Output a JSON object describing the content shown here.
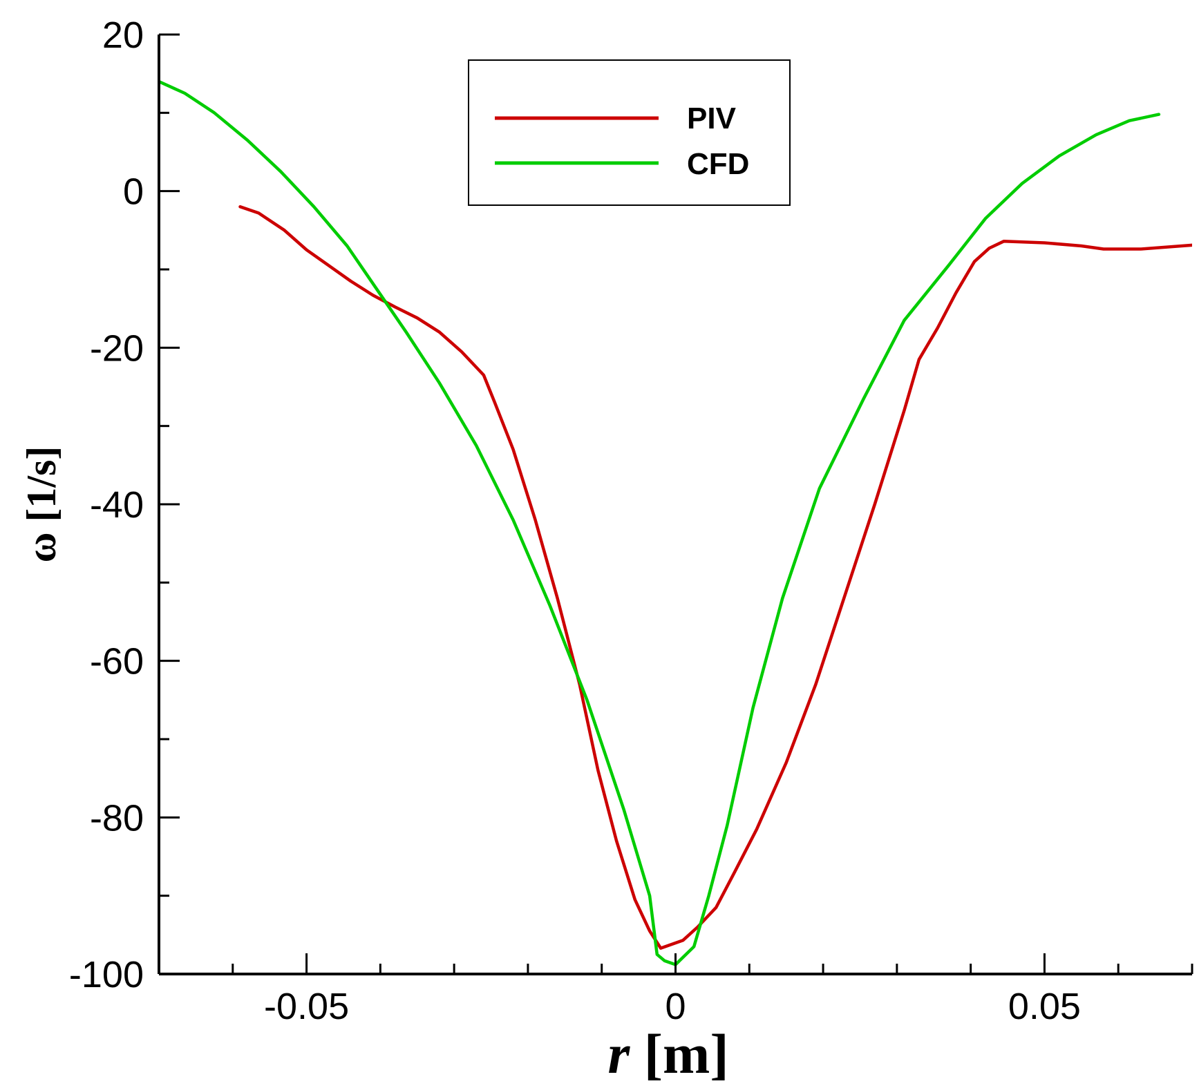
{
  "chart_data": {
    "type": "line",
    "xlabel": {
      "var": "r",
      "unit": " [m]"
    },
    "ylabel": "ω [1/s]",
    "xlim": [
      -0.07,
      0.07
    ],
    "ylim": [
      -100,
      20
    ],
    "x_major_ticks": [
      -0.05,
      0,
      0.05
    ],
    "x_major_labels": [
      "-0.05",
      "0",
      "0.05"
    ],
    "x_minor_step": 0.01,
    "y_major_ticks": [
      20,
      0,
      -20,
      -40,
      -60,
      -80,
      -100
    ],
    "y_major_labels": [
      "20",
      "0",
      "-20",
      "-40",
      "-60",
      "-80",
      "-100"
    ],
    "y_minor_step": 10,
    "grid": false,
    "legend_position": "top-center",
    "series": [
      {
        "name": "PIV",
        "color": "#cc0000",
        "points": [
          [
            -0.059,
            -2
          ],
          [
            -0.0565,
            -2.8
          ],
          [
            -0.053,
            -5
          ],
          [
            -0.05,
            -7.5
          ],
          [
            -0.047,
            -9.5
          ],
          [
            -0.044,
            -11.5
          ],
          [
            -0.041,
            -13.3
          ],
          [
            -0.038,
            -14.8
          ],
          [
            -0.035,
            -16.2
          ],
          [
            -0.032,
            -18
          ],
          [
            -0.029,
            -20.5
          ],
          [
            -0.026,
            -23.5
          ],
          [
            -0.0245,
            -27
          ],
          [
            -0.022,
            -33
          ],
          [
            -0.019,
            -42
          ],
          [
            -0.016,
            -52
          ],
          [
            -0.013,
            -63
          ],
          [
            -0.0105,
            -74
          ],
          [
            -0.008,
            -83
          ],
          [
            -0.0055,
            -90.5
          ],
          [
            -0.0035,
            -94.5
          ],
          [
            -0.002,
            -96.7
          ],
          [
            0.001,
            -95.7
          ],
          [
            0.003,
            -94
          ],
          [
            0.0055,
            -91.5
          ],
          [
            0.008,
            -87
          ],
          [
            0.011,
            -81.5
          ],
          [
            0.015,
            -73
          ],
          [
            0.019,
            -63
          ],
          [
            0.023,
            -51.5
          ],
          [
            0.027,
            -40
          ],
          [
            0.031,
            -28
          ],
          [
            0.033,
            -21.5
          ],
          [
            0.0355,
            -17.5
          ],
          [
            0.038,
            -13
          ],
          [
            0.0405,
            -9
          ],
          [
            0.0425,
            -7.3
          ],
          [
            0.0445,
            -6.4
          ],
          [
            0.05,
            -6.6
          ],
          [
            0.055,
            -7
          ],
          [
            0.058,
            -7.4
          ],
          [
            0.063,
            -7.4
          ],
          [
            0.07,
            -6.9
          ]
        ]
      },
      {
        "name": "CFD",
        "color": "#00cc00",
        "points": [
          [
            -0.07,
            14
          ],
          [
            -0.0665,
            12.5
          ],
          [
            -0.0625,
            10
          ],
          [
            -0.058,
            6.5
          ],
          [
            -0.0535,
            2.5
          ],
          [
            -0.049,
            -2
          ],
          [
            -0.0445,
            -7
          ],
          [
            -0.0405,
            -12.5
          ],
          [
            -0.0365,
            -18
          ],
          [
            -0.032,
            -24.5
          ],
          [
            -0.027,
            -32.5
          ],
          [
            -0.022,
            -42
          ],
          [
            -0.017,
            -53
          ],
          [
            -0.012,
            -65
          ],
          [
            -0.007,
            -79
          ],
          [
            -0.0035,
            -90
          ],
          [
            -0.0025,
            -97.5
          ],
          [
            -0.0015,
            -98.3
          ],
          [
            0,
            -98.8
          ],
          [
            0.0025,
            -96.5
          ],
          [
            0.0045,
            -90
          ],
          [
            0.007,
            -81
          ],
          [
            0.0105,
            -66
          ],
          [
            0.0145,
            -52
          ],
          [
            0.0195,
            -38
          ],
          [
            0.0255,
            -26.5
          ],
          [
            0.031,
            -16.5
          ],
          [
            0.037,
            -9.5
          ],
          [
            0.042,
            -3.5
          ],
          [
            0.047,
            1
          ],
          [
            0.052,
            4.5
          ],
          [
            0.057,
            7.2
          ],
          [
            0.0615,
            9
          ],
          [
            0.0655,
            9.8
          ]
        ]
      }
    ]
  }
}
